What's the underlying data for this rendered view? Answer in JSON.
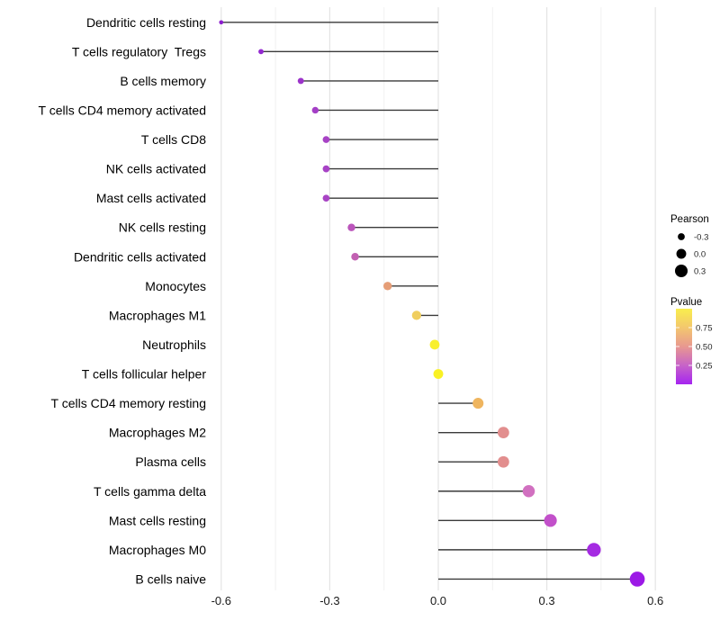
{
  "figure": {
    "background": "#FFFFFF",
    "description": "Horizontal lollipop chart of Pearson correlation per immune cell type, point color mapped to p-value, point size mapped to Pearson value"
  },
  "chart_data": {
    "type": "lollipop",
    "subtype": "horizontal stem + dot (Cleveland dot plot)",
    "title": "",
    "xlabel": "",
    "ylabel": "",
    "xlim": [
      -0.65,
      0.65
    ],
    "x_ticks": [
      {
        "value": -0.6,
        "label": "-0.6"
      },
      {
        "value": -0.3,
        "label": "-0.3"
      },
      {
        "value": 0.0,
        "label": "0.0"
      },
      {
        "value": 0.3,
        "label": "0.3"
      },
      {
        "value": 0.6,
        "label": "0.6"
      }
    ],
    "x_minor_ticks": [
      -0.45,
      -0.15,
      0.15,
      0.45
    ],
    "grid": "vertical major and minor gridlines, light gray on white, no panel border",
    "stem_color": "#3A3A3A",
    "rows": [
      {
        "label": "Dendritic cells resting",
        "pearson": -0.6,
        "pvalue_approx": 0.01,
        "color": "#8C1ECE"
      },
      {
        "label": "T cells regulatory  Tregs",
        "pearson": -0.49,
        "pvalue_approx": 0.03,
        "color": "#9329D0"
      },
      {
        "label": "B cells memory",
        "pearson": -0.38,
        "pvalue_approx": 0.06,
        "color": "#9C34CA"
      },
      {
        "label": "T cells CD4 memory activated",
        "pearson": -0.34,
        "pvalue_approx": 0.09,
        "color": "#A43EC6"
      },
      {
        "label": "T cells CD8",
        "pearson": -0.31,
        "pvalue_approx": 0.1,
        "color": "#A742C5"
      },
      {
        "label": "NK cells activated",
        "pearson": -0.31,
        "pvalue_approx": 0.1,
        "color": "#A742C5"
      },
      {
        "label": "Mast cells activated",
        "pearson": -0.31,
        "pvalue_approx": 0.11,
        "color": "#A844C4"
      },
      {
        "label": "NK cells resting",
        "pearson": -0.24,
        "pvalue_approx": 0.17,
        "color": "#BB55BB"
      },
      {
        "label": "Dendritic cells activated",
        "pearson": -0.23,
        "pvalue_approx": 0.21,
        "color": "#C260B2"
      },
      {
        "label": "Monocytes",
        "pearson": -0.14,
        "pvalue_approx": 0.55,
        "color": "#E59D76"
      },
      {
        "label": "Macrophages M1",
        "pearson": -0.06,
        "pvalue_approx": 0.78,
        "color": "#F0CE5E"
      },
      {
        "label": "Neutrophils",
        "pearson": -0.01,
        "pvalue_approx": 0.95,
        "color": "#F8EF2E"
      },
      {
        "label": "T cells follicular helper",
        "pearson": 0.0,
        "pvalue_approx": 0.97,
        "color": "#F9F124"
      },
      {
        "label": "T cells CD4 memory resting",
        "pearson": 0.11,
        "pvalue_approx": 0.7,
        "color": "#EFB55F"
      },
      {
        "label": "Macrophages M2",
        "pearson": 0.18,
        "pvalue_approx": 0.48,
        "color": "#E28E8E"
      },
      {
        "label": "Plasma cells",
        "pearson": 0.18,
        "pvalue_approx": 0.48,
        "color": "#E28E8E"
      },
      {
        "label": "T cells gamma delta",
        "pearson": 0.25,
        "pvalue_approx": 0.28,
        "color": "#D170C0"
      },
      {
        "label": "Mast cells resting",
        "pearson": 0.31,
        "pvalue_approx": 0.17,
        "color": "#C250CA"
      },
      {
        "label": "Macrophages M0",
        "pearson": 0.43,
        "pvalue_approx": 0.05,
        "color": "#A52BE2"
      },
      {
        "label": "B cells naive",
        "pearson": 0.55,
        "pvalue_approx": 0.02,
        "color": "#9C19E6"
      }
    ],
    "legend_pearson": {
      "title": "Pearson",
      "dot_color": "#000000",
      "items": [
        {
          "value": -0.3,
          "label": "-0.3"
        },
        {
          "value": 0.0,
          "label": "0.0"
        },
        {
          "value": 0.3,
          "label": "0.3"
        }
      ]
    },
    "legend_pvalue": {
      "title": "Pvalue",
      "ticks": [
        {
          "value": 0.75,
          "label": "0.75"
        },
        {
          "value": 0.5,
          "label": "0.50"
        },
        {
          "value": 0.25,
          "label": "0.25"
        }
      ],
      "gradient_stops": [
        {
          "pos": 0.0,
          "color": "#A524F0"
        },
        {
          "pos": 0.25,
          "color": "#C763C8"
        },
        {
          "pos": 0.5,
          "color": "#E89890"
        },
        {
          "pos": 0.75,
          "color": "#F3C76E"
        },
        {
          "pos": 1.0,
          "color": "#F9EE4D"
        }
      ]
    }
  }
}
